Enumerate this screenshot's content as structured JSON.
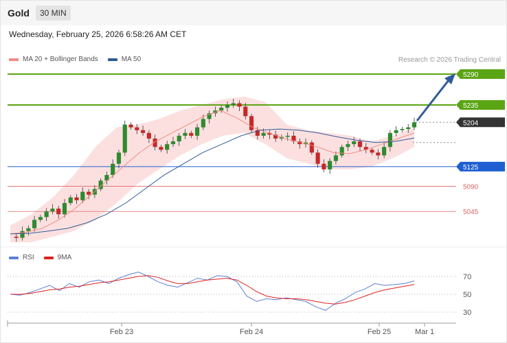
{
  "header": {
    "instrument": "Gold",
    "timeframe": "30 MIN"
  },
  "datetime": "Wednesday, February 25, 2026 6:58:26 AM CET",
  "copyright": "Research © 2026 Trading Central",
  "legend": [
    {
      "label": "MA 20 + Bollinger Bands",
      "color": "#f28b82"
    },
    {
      "label": "MA 50",
      "color": "#2f5b9a"
    }
  ],
  "rsi_legend": [
    {
      "label": "RSI",
      "color": "#5b7fd6"
    },
    {
      "label": "9MA",
      "color": "#e02020"
    }
  ],
  "colors": {
    "resistance": "#5aa513",
    "pivot": "#1f5fd1",
    "support": "#e06666",
    "last": "#333333",
    "candle_up": "#2e8b2e",
    "candle_down": "#c62828",
    "band_fill": "#fbd6d6",
    "arrow": "#2f5b9a"
  },
  "chart_data": [
    {
      "type": "candlestick",
      "title": "",
      "ylim": [
        5000,
        5310
      ],
      "x_ticks": [
        "Feb 23",
        "Feb 24",
        "Feb 25",
        "Mar 1"
      ],
      "levels": [
        {
          "value": 5290,
          "label": "5290",
          "kind": "resistance"
        },
        {
          "value": 5235,
          "label": "5235",
          "kind": "resistance"
        },
        {
          "value": 5204,
          "label": "5204",
          "kind": "last"
        },
        {
          "value": 5125,
          "label": "5125",
          "kind": "pivot"
        },
        {
          "value": 5090,
          "label": "5090",
          "kind": "support"
        },
        {
          "value": 5045,
          "label": "5045",
          "kind": "support"
        }
      ],
      "close_path": [
        5000,
        4998,
        5010,
        5015,
        5030,
        5035,
        5045,
        5050,
        5040,
        5060,
        5070,
        5065,
        5080,
        5075,
        5085,
        5100,
        5110,
        5130,
        5150,
        5200,
        5195,
        5190,
        5185,
        5175,
        5160,
        5155,
        5165,
        5170,
        5180,
        5185,
        5180,
        5195,
        5210,
        5220,
        5225,
        5230,
        5235,
        5238,
        5232,
        5215,
        5190,
        5180,
        5185,
        5182,
        5175,
        5178,
        5180,
        5170,
        5165,
        5168,
        5150,
        5130,
        5120,
        5135,
        5145,
        5160,
        5165,
        5170,
        5160,
        5155,
        5150,
        5145,
        5160,
        5185,
        5190,
        5192,
        5195,
        5204
      ],
      "ma20": [
        5005,
        5008,
        5015,
        5030,
        5050,
        5075,
        5100,
        5125,
        5150,
        5170,
        5185,
        5200,
        5215,
        5225,
        5212,
        5195,
        5185,
        5175,
        5168,
        5160,
        5150,
        5148,
        5155,
        5165,
        5175,
        5185
      ],
      "ma50": [
        5005,
        5006,
        5010,
        5015,
        5025,
        5040,
        5060,
        5085,
        5110,
        5130,
        5150,
        5165,
        5180,
        5190,
        5192,
        5190,
        5185,
        5178,
        5172,
        5168,
        5170,
        5176
      ],
      "bollinger_upper": [
        5020,
        5040,
        5070,
        5110,
        5160,
        5195,
        5200,
        5210,
        5225,
        5235,
        5245,
        5250,
        5240,
        5200,
        5190,
        5185,
        5180,
        5170,
        5180,
        5195
      ],
      "bollinger_lower": [
        4990,
        4990,
        5000,
        5010,
        5030,
        5060,
        5095,
        5120,
        5145,
        5165,
        5180,
        5185,
        5165,
        5140,
        5130,
        5120,
        5120,
        5125,
        5140,
        5160
      ]
    },
    {
      "type": "line",
      "title": "",
      "ylim": [
        20,
        80
      ],
      "y_ticks": [
        30,
        50,
        70
      ],
      "series": [
        {
          "name": "RSI",
          "values": [
            50,
            49,
            52,
            56,
            60,
            54,
            62,
            58,
            64,
            66,
            62,
            68,
            72,
            75,
            70,
            64,
            60,
            58,
            63,
            68,
            66,
            71,
            70,
            64,
            48,
            42,
            45,
            44,
            46,
            44,
            42,
            36,
            32,
            40,
            45,
            52,
            56,
            62,
            60,
            61,
            62,
            65
          ]
        },
        {
          "name": "9MA",
          "values": [
            50,
            50,
            51,
            53,
            55,
            56,
            58,
            59,
            61,
            63,
            64,
            66,
            68,
            70,
            71,
            69,
            65,
            62,
            62,
            64,
            66,
            67,
            68,
            66,
            60,
            53,
            48,
            46,
            45,
            45,
            44,
            42,
            40,
            39,
            41,
            44,
            48,
            52,
            55,
            57,
            59,
            61
          ]
        }
      ]
    }
  ]
}
